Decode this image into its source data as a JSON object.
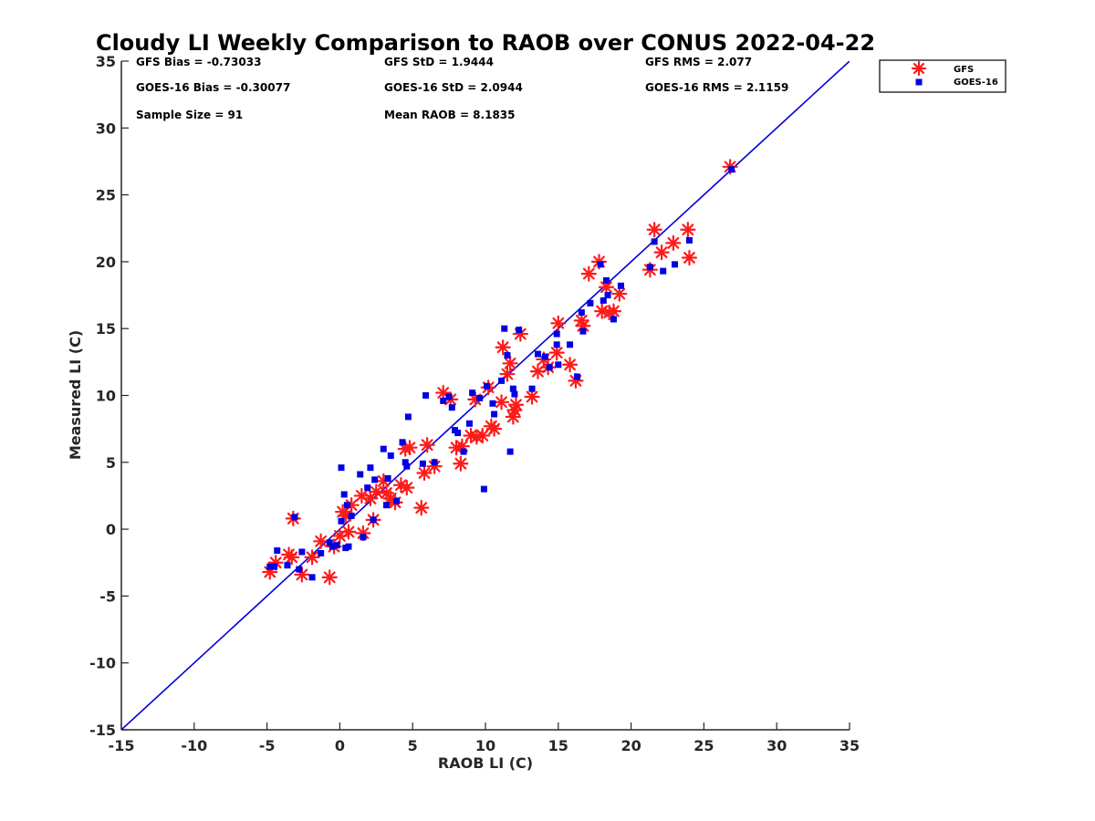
{
  "chart_data": {
    "type": "scatter",
    "title": "Cloudy LI Weekly Comparison to RAOB over CONUS 2022-04-22",
    "xlabel": "RAOB LI (C)",
    "ylabel": "Measured LI (C)",
    "xlim": [
      -15,
      35
    ],
    "ylim": [
      -15,
      35
    ],
    "xticks": [
      -15,
      -10,
      -5,
      0,
      5,
      10,
      15,
      20,
      25,
      30,
      35
    ],
    "yticks": [
      -15,
      -10,
      -5,
      0,
      5,
      10,
      15,
      20,
      25,
      30,
      35
    ],
    "grid": false,
    "legend_position": "outside top-right",
    "reference_line": {
      "x": [
        -15,
        35
      ],
      "y": [
        -15,
        35
      ],
      "color": "#0000dd"
    },
    "stats": [
      [
        "GFS Bias = -0.73033",
        "GFS StD = 1.9444",
        "GFS RMS = 2.077"
      ],
      [
        "GOES-16 Bias = -0.30077",
        "GOES-16 StD = 2.0944",
        "GOES-16 RMS = 2.1159"
      ],
      [
        "Sample Size = 91",
        "Mean RAOB = 8.1835",
        ""
      ]
    ],
    "series": [
      {
        "name": "GFS",
        "marker": "asterisk",
        "color": "#ff1a1a",
        "x": [
          -4.8,
          -4.4,
          -3.5,
          -3.3,
          -3.2,
          -2.6,
          -1.9,
          -1.3,
          -0.7,
          -0.4,
          0.0,
          0.2,
          0.4,
          0.6,
          0.8,
          1.5,
          1.6,
          2.1,
          2.3,
          2.5,
          3.0,
          3.2,
          3.5,
          3.8,
          4.2,
          4.5,
          4.6,
          4.8,
          5.6,
          5.8,
          6.0,
          6.5,
          7.1,
          7.6,
          8.0,
          8.3,
          8.4,
          9.0,
          9.3,
          9.4,
          9.8,
          10.2,
          10.4,
          10.6,
          11.1,
          11.2,
          11.5,
          11.7,
          11.9,
          12.0,
          12.1,
          12.4,
          13.2,
          13.6,
          14.0,
          14.3,
          14.9,
          15.0,
          15.8,
          16.2,
          16.6,
          16.7,
          17.1,
          17.8,
          18.0,
          18.3,
          18.5,
          18.8,
          19.2,
          21.3,
          21.6,
          22.1,
          22.9,
          23.9,
          24.0,
          26.8
        ],
        "y": [
          -3.2,
          -2.5,
          -1.9,
          -2.1,
          0.8,
          -3.4,
          -2.1,
          -0.9,
          -3.6,
          -1.3,
          -0.5,
          1.3,
          1.0,
          -0.2,
          1.8,
          2.5,
          -0.3,
          2.3,
          0.7,
          2.8,
          3.6,
          2.7,
          2.3,
          2.0,
          3.3,
          6.0,
          3.1,
          6.1,
          1.6,
          4.2,
          6.3,
          4.7,
          10.2,
          9.7,
          6.1,
          4.9,
          6.2,
          7.0,
          9.7,
          6.9,
          7.0,
          10.6,
          7.7,
          7.5,
          9.5,
          13.6,
          11.6,
          12.4,
          8.4,
          8.9,
          9.3,
          14.6,
          9.9,
          11.8,
          12.7,
          12.1,
          13.2,
          15.4,
          12.3,
          11.1,
          15.6,
          15.2,
          19.1,
          20.0,
          16.3,
          18.1,
          16.2,
          16.3,
          17.6,
          19.4,
          22.4,
          20.7,
          21.4,
          22.4,
          20.3,
          27.1
        ]
      },
      {
        "name": "GOES-16",
        "marker": "square",
        "color": "#0000e6",
        "x": [
          -4.8,
          -4.5,
          -4.3,
          -3.6,
          -3.1,
          -2.8,
          -2.6,
          -1.9,
          -1.3,
          -0.7,
          -0.5,
          -0.2,
          0.1,
          0.1,
          0.3,
          0.4,
          0.5,
          0.6,
          0.8,
          1.4,
          1.6,
          1.9,
          2.1,
          2.3,
          2.4,
          3.0,
          3.2,
          3.3,
          3.5,
          3.9,
          4.3,
          4.5,
          4.6,
          4.7,
          5.7,
          5.9,
          6.5,
          7.1,
          7.5,
          7.7,
          7.9,
          8.1,
          8.5,
          8.9,
          9.1,
          9.6,
          9.9,
          10.1,
          10.5,
          10.6,
          11.1,
          11.3,
          11.5,
          11.7,
          11.9,
          12.0,
          12.3,
          13.2,
          13.6,
          14.1,
          14.4,
          14.9,
          14.9,
          15.0,
          15.8,
          16.3,
          16.6,
          16.7,
          17.2,
          17.9,
          18.1,
          18.3,
          18.4,
          18.8,
          19.3,
          21.3,
          21.6,
          22.2,
          23.0,
          24.0,
          26.9
        ],
        "y": [
          -2.8,
          -2.8,
          -1.6,
          -2.7,
          0.9,
          -3.0,
          -1.7,
          -3.6,
          -1.8,
          -1.0,
          -1.3,
          -1.2,
          4.6,
          0.6,
          2.6,
          -1.4,
          1.8,
          -1.3,
          1.0,
          4.1,
          -0.6,
          3.1,
          4.6,
          0.7,
          3.7,
          6.0,
          1.8,
          3.8,
          5.5,
          2.1,
          6.5,
          5.0,
          4.7,
          8.4,
          4.9,
          10.0,
          5.0,
          9.6,
          9.9,
          9.1,
          7.4,
          7.2,
          5.8,
          7.9,
          10.2,
          9.8,
          3.0,
          10.7,
          9.4,
          8.6,
          11.1,
          15.0,
          13.0,
          5.8,
          10.5,
          10.1,
          14.9,
          10.5,
          13.1,
          12.9,
          12.1,
          14.6,
          13.8,
          12.3,
          13.8,
          11.4,
          16.2,
          14.8,
          16.9,
          19.8,
          17.1,
          18.6,
          17.5,
          15.7,
          18.2,
          19.6,
          21.5,
          19.3,
          19.8,
          21.6,
          26.9
        ]
      }
    ]
  }
}
